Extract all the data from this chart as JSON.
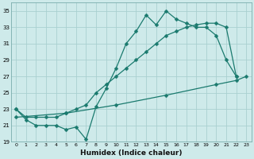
{
  "xlabel": "Humidex (Indice chaleur)",
  "bg_color": "#ceeaea",
  "grid_color": "#aad0d0",
  "line_color": "#1a7a6e",
  "xlim": [
    -0.5,
    23.5
  ],
  "ylim": [
    19,
    36
  ],
  "xticks": [
    0,
    1,
    2,
    3,
    4,
    5,
    6,
    7,
    8,
    9,
    10,
    11,
    12,
    13,
    14,
    15,
    16,
    17,
    18,
    19,
    20,
    21,
    22,
    23
  ],
  "yticks": [
    19,
    21,
    23,
    25,
    27,
    29,
    31,
    33,
    35
  ],
  "curve_jagged_x": [
    0,
    1,
    2,
    3,
    4,
    5,
    6,
    7,
    8,
    9,
    10,
    11,
    12,
    13,
    14,
    15,
    16,
    17,
    18,
    19,
    20,
    21,
    22
  ],
  "curve_jagged_y": [
    23,
    21.7,
    21,
    21,
    21,
    20.5,
    20.8,
    19.3,
    23.3,
    25.5,
    28,
    31,
    32.5,
    34.5,
    33.3,
    35,
    34,
    33.5,
    33,
    33,
    32,
    29,
    27
  ],
  "curve_upper_x": [
    0,
    1,
    2,
    3,
    4,
    5,
    6,
    7,
    8,
    9,
    10,
    11,
    12,
    13,
    14,
    15,
    16,
    17,
    18,
    19,
    20,
    21,
    22
  ],
  "curve_upper_y": [
    23,
    22,
    22,
    22,
    22,
    22.5,
    23,
    23.5,
    25,
    26,
    27,
    28,
    29,
    30,
    31,
    32,
    32.5,
    33,
    33.3,
    33.5,
    33.5,
    33,
    27
  ],
  "curve_lower_x": [
    0,
    5,
    10,
    15,
    20,
    22,
    23
  ],
  "curve_lower_y": [
    22,
    22.5,
    23.5,
    24.7,
    26,
    26.5,
    27
  ]
}
